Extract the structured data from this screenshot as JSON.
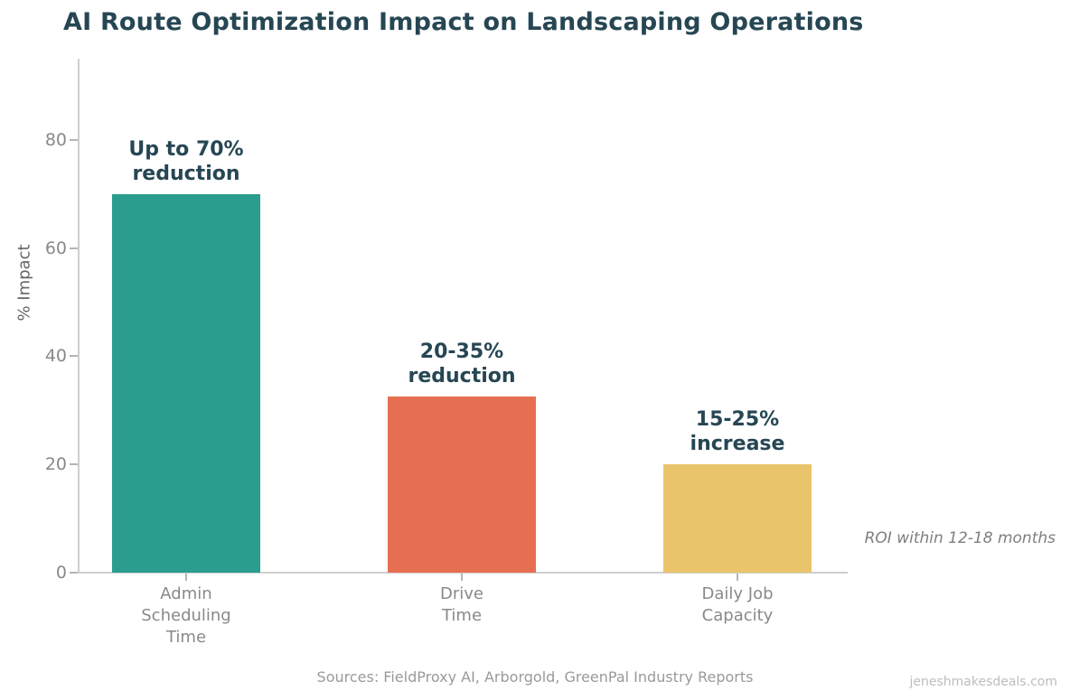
{
  "page": {
    "title": "AI Route Optimization Impact on Landscaping Operations",
    "roi_note": "ROI within 12-18 months",
    "sources": "Sources: FieldProxy AI, Arborgold, GreenPal Industry Reports",
    "watermark": "jeneshmakesdeals.com"
  },
  "chart_data": {
    "type": "bar",
    "title": "AI Route Optimization Impact on Landscaping Operations",
    "xlabel": "",
    "ylabel": "% Impact",
    "ylim": [
      0,
      95
    ],
    "yticks": [
      0,
      20,
      40,
      60,
      80
    ],
    "grid": false,
    "legend": null,
    "categories": [
      "Admin\nScheduling\nTime",
      "Drive\nTime",
      "Daily Job\nCapacity"
    ],
    "values": [
      70,
      32.5,
      20
    ],
    "bar_colors": [
      "#2a9d8f",
      "#e76f51",
      "#e9c46a"
    ],
    "bar_labels": [
      "Up to 70%\nreduction",
      "20-35%\nreduction",
      "15-25%\nincrease"
    ],
    "annotation": "ROI within 12-18 months"
  },
  "colors": {
    "title": "#264653",
    "bar_label": "#264653",
    "axis_text": "#898989",
    "ylabel_text": "#666666",
    "source_text": "#9a9a9a",
    "roi_text": "#7f7f7f",
    "watermark_text": "#bdbdbd",
    "spine": "#cfcfcf",
    "tick": "#b5b5b5"
  }
}
